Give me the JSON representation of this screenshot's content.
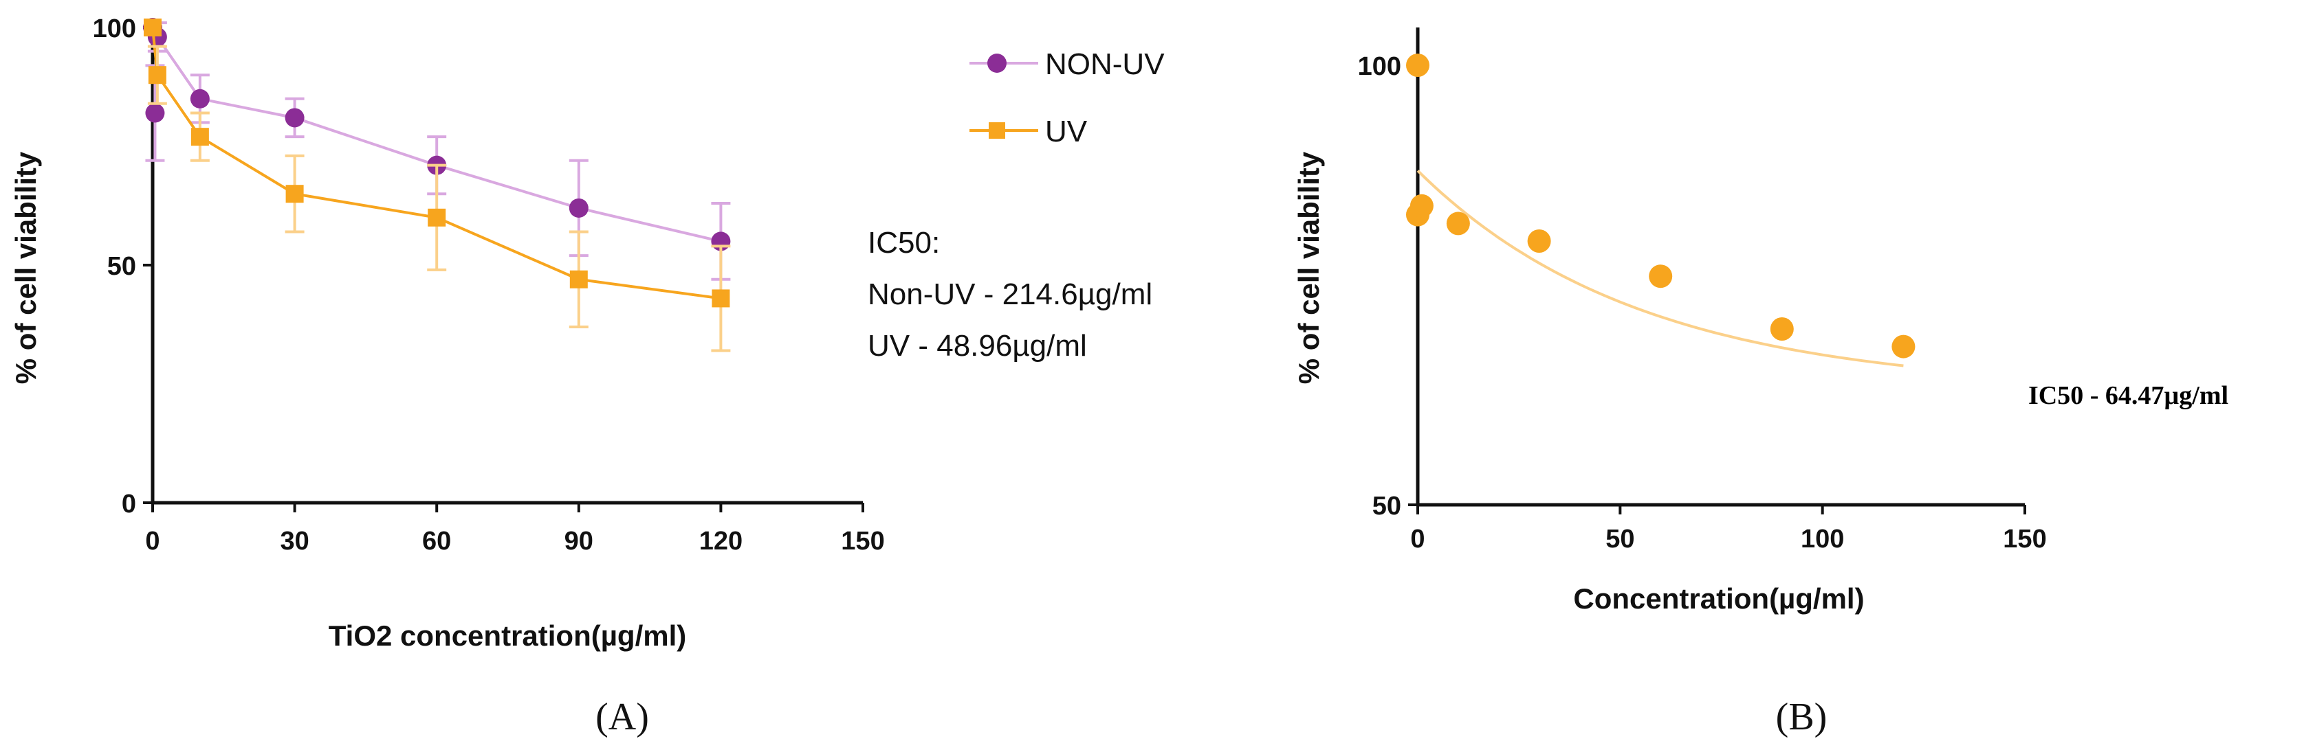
{
  "colors": {
    "non_uv": "#8b2d96",
    "non_uv_line": "#d9a8e0",
    "uv": "#f7a51e",
    "uv_fit": "#fbd08a",
    "axis": "#111111"
  },
  "panel_labels": [
    "(A)",
    "(B)"
  ],
  "chart_data": [
    {
      "type": "line",
      "panel": "(A)",
      "xlabel": "TiO2 concentration(µg/ml)",
      "ylabel": "% of cell viability",
      "xlim": [
        0,
        150
      ],
      "ylim": [
        0,
        100
      ],
      "xticks": [
        "0",
        "30",
        "60",
        "90",
        "120",
        "150"
      ],
      "yticks": [
        "0",
        "50",
        "100"
      ],
      "legend_position": "right",
      "series": [
        {
          "name": "NON-UV",
          "marker": "circle",
          "x": [
            0,
            0.5,
            1,
            10,
            30,
            60,
            90,
            120
          ],
          "y": [
            100,
            82,
            98,
            85,
            81,
            71,
            62,
            55
          ],
          "err": [
            0,
            10,
            3,
            5,
            4,
            6,
            10,
            8
          ]
        },
        {
          "name": "UV",
          "marker": "square",
          "x": [
            0,
            1,
            10,
            30,
            60,
            90,
            120
          ],
          "y": [
            100,
            90,
            77,
            65,
            60,
            47,
            43
          ],
          "err": [
            0,
            6,
            5,
            8,
            11,
            10,
            11
          ]
        }
      ],
      "annotation": [
        "IC50:",
        "Non-UV - 214.6µg/ml",
        "UV - 48.96µg/ml"
      ]
    },
    {
      "type": "scatter",
      "panel": "(B)",
      "xlabel": "Concentration(µg/ml)",
      "ylabel": "% of cell viability",
      "xlim": [
        0,
        150
      ],
      "ylim": [
        50,
        100
      ],
      "xticks": [
        "0",
        "50",
        "100",
        "150"
      ],
      "yticks": [
        "50",
        "100"
      ],
      "points": {
        "x": [
          0,
          0,
          1,
          10,
          30,
          60,
          90,
          120
        ],
        "y": [
          100,
          83,
          84,
          82,
          80,
          76,
          70,
          68
        ]
      },
      "fit_curve": true,
      "annotation": "IC50 - 64.47µg/ml"
    }
  ]
}
